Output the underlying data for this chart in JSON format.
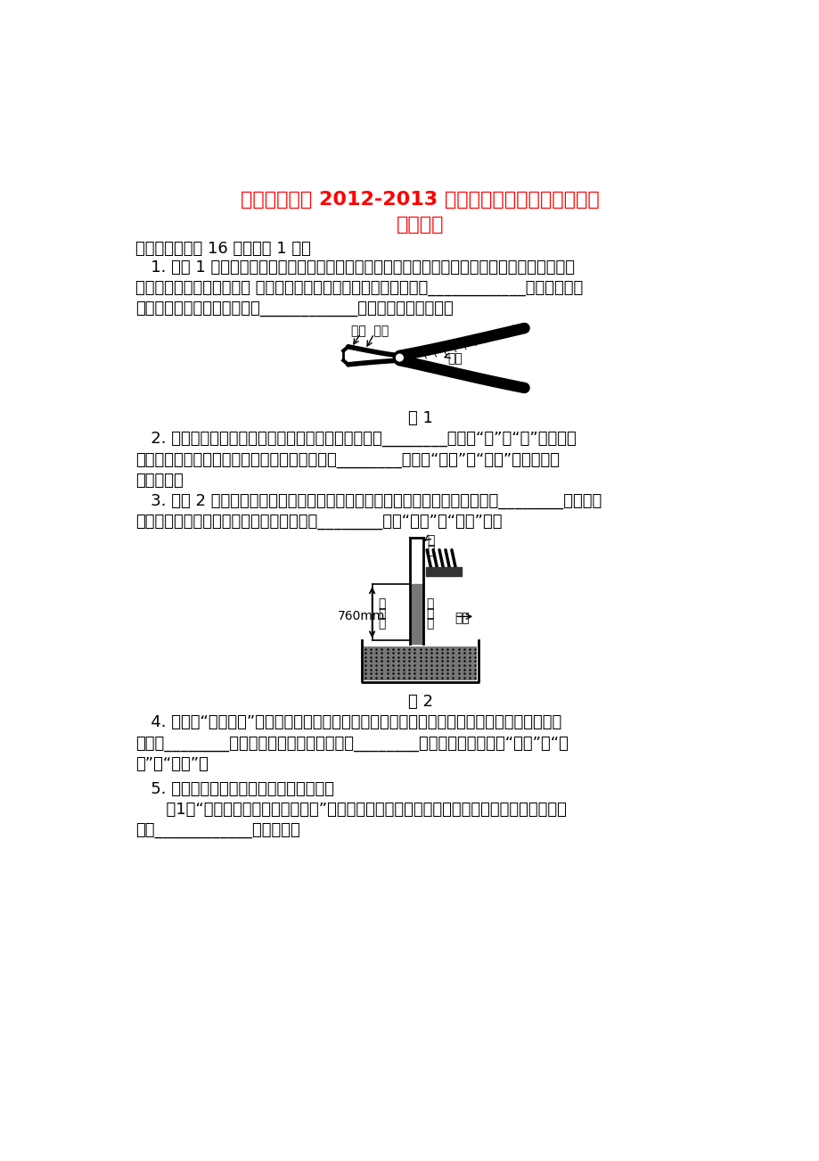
{
  "background_color": "#ffffff",
  "title_line1": "江西省吉州区 2012-2013 学年第二学期八年级期末检测",
  "title_line2": "物理试卷",
  "title_color": "#ff0000",
  "title_fontsize": 16,
  "subtitle_fontsize": 16,
  "body_fontsize": 13,
  "body_color": "#000000",
  "section1": "一、填空题（八 16 分，每空 1 分）",
  "q1_line1": "   1. 如图 1 所示，钓丝钓是电工常用工具，它的用途广泛，并应用了许多我们所学的物理知识，请",
  "q1_line2": "根据题中要求解答以下问题 钓丝钓是根据杠杆原理制成的，它是一种____________杠杆，钓柄套",
  "q1_line3": "管上一般都有花纹，这是为了____________摩擦（增大或减小）。",
  "fig1_label": "图 1",
  "q2_line1": "   2. 行驶的客车打开车窗后，车窗上悬挂的窗帘会向车________（选填“内”或“外”）飘动。",
  "q2_line2": "这是由于车外空气流速大于车内，使车外的气压________（选填“大于”或“小于”）车内气压",
  "q2_line3": "而造成的。",
  "q3_line1": "   3. 如图 2 是测定大气压强的实验，利用该装置最早测出大气压数值的科学家是________。不同海",
  "q3_line2": "拔高度的大气压不一样，它随高度的增加而________（填“增大”或“减小”）。",
  "fig2_label": "图 2",
  "q4_line1": "   4. 俗话说“瓜浮李沉”，意思是西瓜投入水中可以漂浮，李子投入水中会下沉。漂浮的西瓜受到",
  "q4_line2": "的浮力________李子受到的浮力，西瓜的密度________李子的密度。（选填“大于”、“小",
  "q4_line3": "于”或“等于”）",
  "q5_line1": "   5. 请分析以下两个有关能量形式的问题。",
  "q5_line2": "      （1）“强弩之末势不能穿鲁缟者也”。强弩之末不能穿透薄薄的丝绸，说明物体的动能大小与",
  "q5_line3": "它的____________大小有关。"
}
